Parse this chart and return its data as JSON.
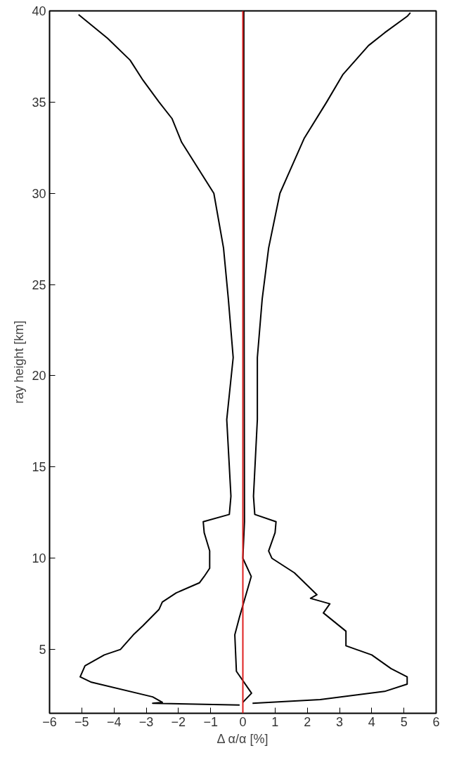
{
  "chart_data": {
    "type": "line",
    "xlabel": "Δ α/α [%]",
    "ylabel": "ray height [km]",
    "xlim": [
      -6,
      6
    ],
    "ylim": [
      1.5,
      40
    ],
    "xticks": [
      -6,
      -5,
      -4,
      -3,
      -2,
      -1,
      0,
      1,
      2,
      3,
      4,
      5,
      6
    ],
    "yticks": [
      5,
      10,
      15,
      20,
      25,
      30,
      35,
      40
    ],
    "grid": false,
    "line_style": "solid",
    "marker": "none",
    "ref_lines": [
      {
        "axis": "x",
        "value": 0,
        "color": "#e02020"
      }
    ],
    "series": [
      {
        "color": "#000000",
        "x": [
          5.2,
          5.1,
          4.4,
          3.9,
          3.1,
          2.6,
          1.9,
          1.15,
          0.8,
          0.6,
          0.45,
          0.45,
          0.33,
          0.37,
          1.03,
          1.0,
          0.8,
          0.9,
          1.6,
          2.3,
          2.1,
          2.7,
          2.5,
          3.2,
          3.2,
          4.0,
          4.6,
          5.1,
          5.1,
          4.4,
          2.4,
          0.3
        ],
        "values": [
          39.9,
          39.7,
          38.8,
          38.1,
          36.5,
          35,
          33,
          30,
          27,
          24.2,
          21,
          17.6,
          13.4,
          12.4,
          12.0,
          11.4,
          10.4,
          10,
          9.2,
          8.0,
          7.8,
          7.5,
          7.0,
          6.0,
          5.2,
          4.7,
          3.95,
          3.5,
          3.1,
          2.7,
          2.25,
          2.05
        ]
      },
      {
        "color": "#000000",
        "x": [
          -5.1,
          -4.2,
          -3.5,
          -3.1,
          -2.6,
          -2.2,
          -1.9,
          -0.9,
          -0.6,
          -0.45,
          -0.3,
          -0.5,
          -0.37,
          -0.42,
          -1.23,
          -1.2,
          -1.03,
          -1.03,
          -1.2,
          -1.35,
          -2.07,
          -2.5,
          -2.6,
          -3.1,
          -3.4,
          -3.8,
          -4.3,
          -4.9,
          -5.05,
          -4.7,
          -2.8,
          -2.5,
          -2.8,
          -0.1
        ],
        "values": [
          39.8,
          38.5,
          37.3,
          36.2,
          35,
          34.1,
          32.8,
          30,
          27,
          24.2,
          21,
          17.6,
          13.4,
          12.4,
          12.0,
          11.4,
          10.4,
          9.45,
          9.0,
          8.65,
          8.1,
          7.6,
          7.2,
          6.3,
          5.8,
          5.0,
          4.7,
          4.1,
          3.5,
          3.2,
          2.4,
          2.1,
          2.05,
          1.95
        ]
      },
      {
        "color": "#000000",
        "x": [
          0.03,
          0.03,
          0.05,
          0.0,
          0.26,
          -0.1,
          -0.25,
          -0.2,
          0.27,
          0.0
        ],
        "values": [
          40,
          33,
          12,
          10,
          9.0,
          6.8,
          5.8,
          3.8,
          2.6,
          2.1
        ]
      }
    ]
  }
}
